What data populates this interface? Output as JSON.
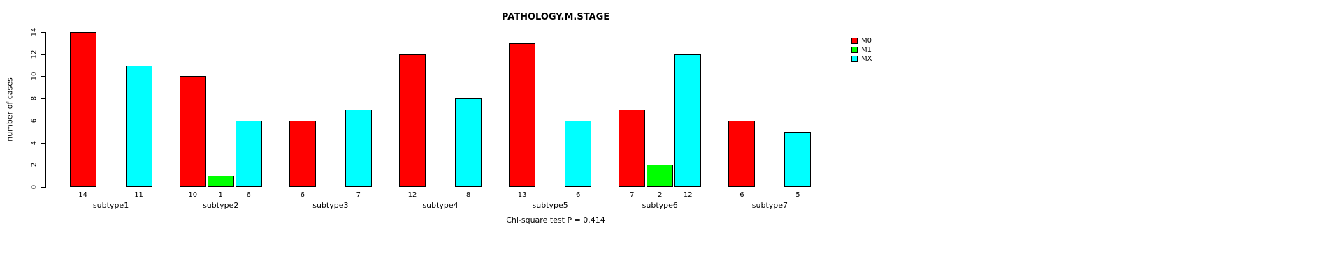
{
  "title": "PATHOLOGY.M.STAGE",
  "ylabel": "number of cases",
  "footer": "Chi-square test P = 0.414",
  "legend": {
    "position": "top-right",
    "items": [
      {
        "label": "M0",
        "color": "#FF0000"
      },
      {
        "label": "M1",
        "color": "#00FF00"
      },
      {
        "label": "MX",
        "color": "#00FFFF"
      }
    ]
  },
  "chart_data": {
    "type": "bar",
    "title": "PATHOLOGY.M.STAGE",
    "xlabel": "",
    "ylabel": "number of cases",
    "ylim": [
      0,
      14
    ],
    "yticks": [
      0,
      2,
      4,
      6,
      8,
      10,
      12,
      14
    ],
    "grid": false,
    "legend_position": "top-right",
    "annotation": "Chi-square test P = 0.414",
    "categories": [
      "subtype1",
      "subtype2",
      "subtype3",
      "subtype4",
      "subtype5",
      "subtype6",
      "subtype7"
    ],
    "series": [
      {
        "name": "M0",
        "color": "#FF0000",
        "values": [
          14,
          10,
          6,
          12,
          13,
          7,
          6
        ]
      },
      {
        "name": "M1",
        "color": "#00FF00",
        "values": [
          0,
          1,
          0,
          0,
          0,
          2,
          0
        ]
      },
      {
        "name": "MX",
        "color": "#00FFFF",
        "values": [
          11,
          6,
          7,
          8,
          6,
          12,
          5
        ]
      }
    ],
    "bar_value_labels_shown_only_when_nonzero": true
  }
}
